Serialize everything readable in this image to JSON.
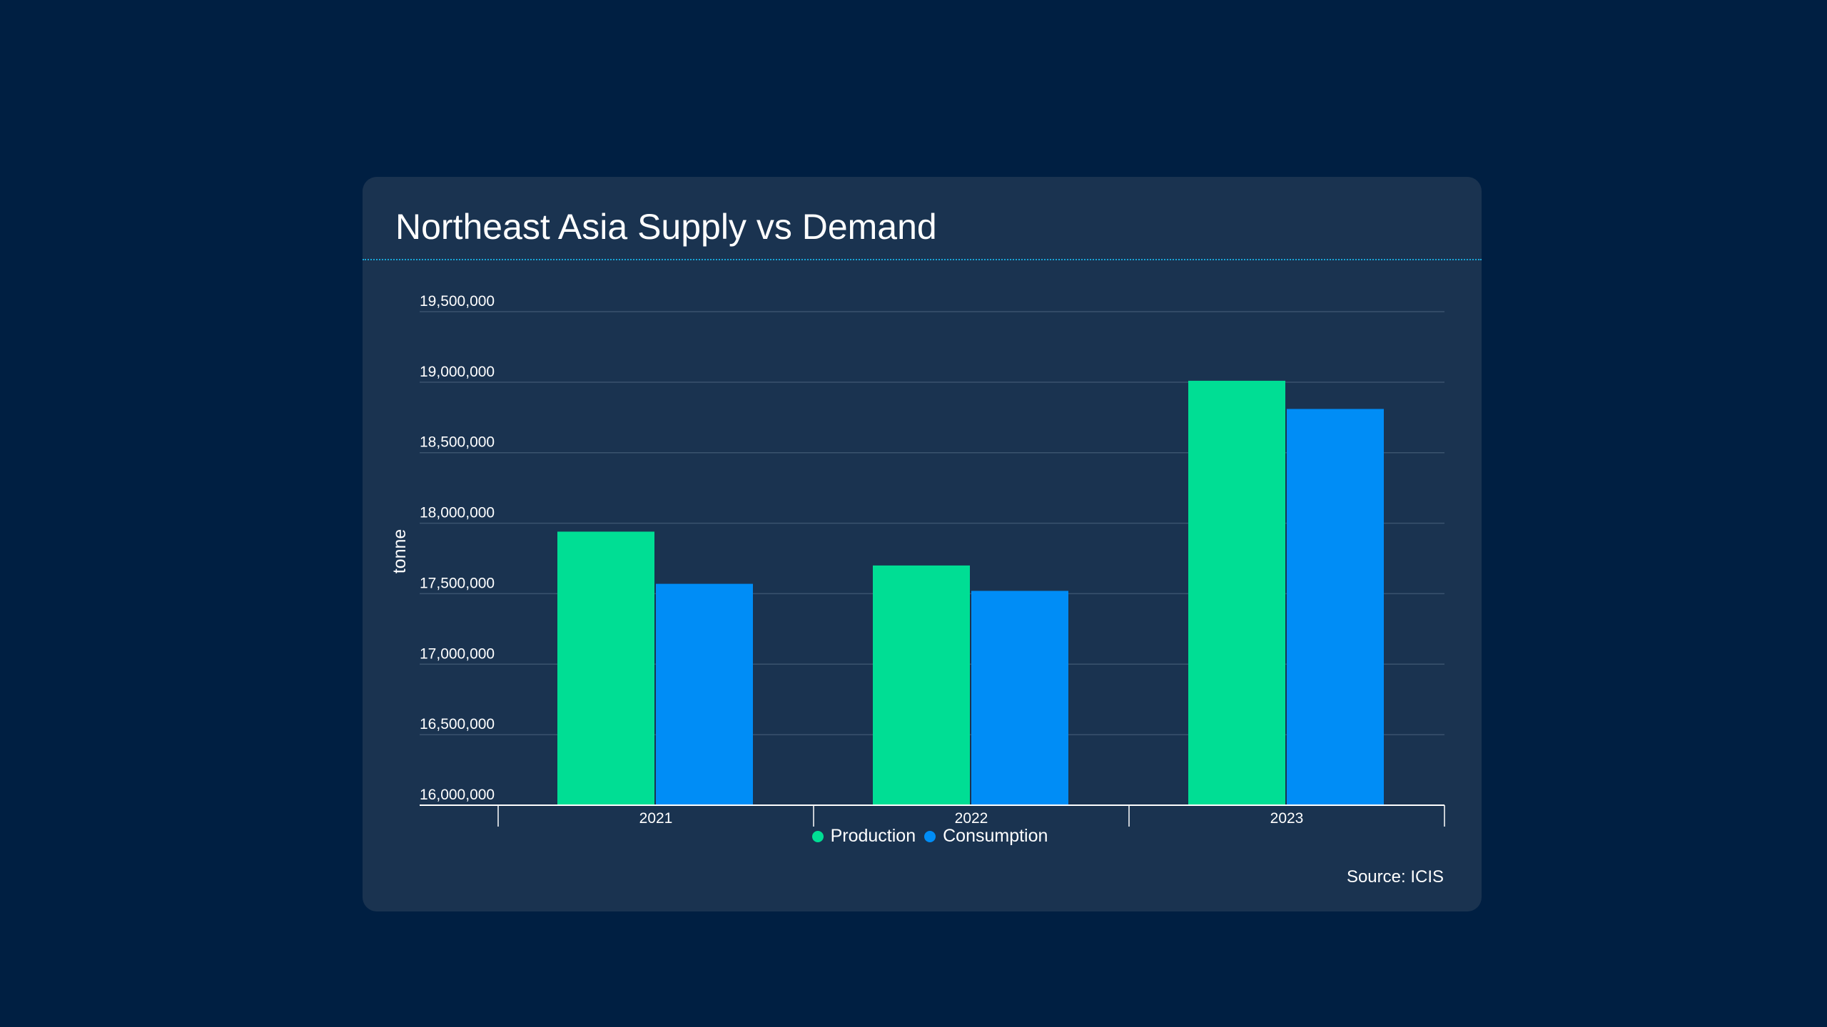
{
  "card": {
    "title": "Northeast Asia Supply vs Demand",
    "source": "Source: ICIS"
  },
  "colors": {
    "page_background": "#001f42",
    "card_background": "#1a3350",
    "production": "#00de94",
    "consumption": "#008df6",
    "gridline": "#3a536e",
    "axis": "#ffffff"
  },
  "chart_data": {
    "type": "bar",
    "title": "Northeast Asia Supply vs Demand",
    "ylabel": "tonne",
    "categories": [
      "2021",
      "2022",
      "2023"
    ],
    "series": [
      {
        "name": "Production",
        "color": "#00de94",
        "values": [
          17940000,
          17700000,
          19010000
        ]
      },
      {
        "name": "Consumption",
        "color": "#008df6",
        "values": [
          17570000,
          17520000,
          18810000
        ]
      }
    ],
    "ylim": [
      16000000,
      19500000
    ],
    "yticks": [
      16000000,
      16500000,
      17000000,
      17500000,
      18000000,
      18500000,
      19000000,
      19500000
    ],
    "ytick_labels": [
      "16,000,000",
      "16,500,000",
      "17,000,000",
      "17,500,000",
      "18,000,000",
      "18,500,000",
      "19,000,000",
      "19,500,000"
    ],
    "grid": true,
    "legend": "bottom-center"
  }
}
